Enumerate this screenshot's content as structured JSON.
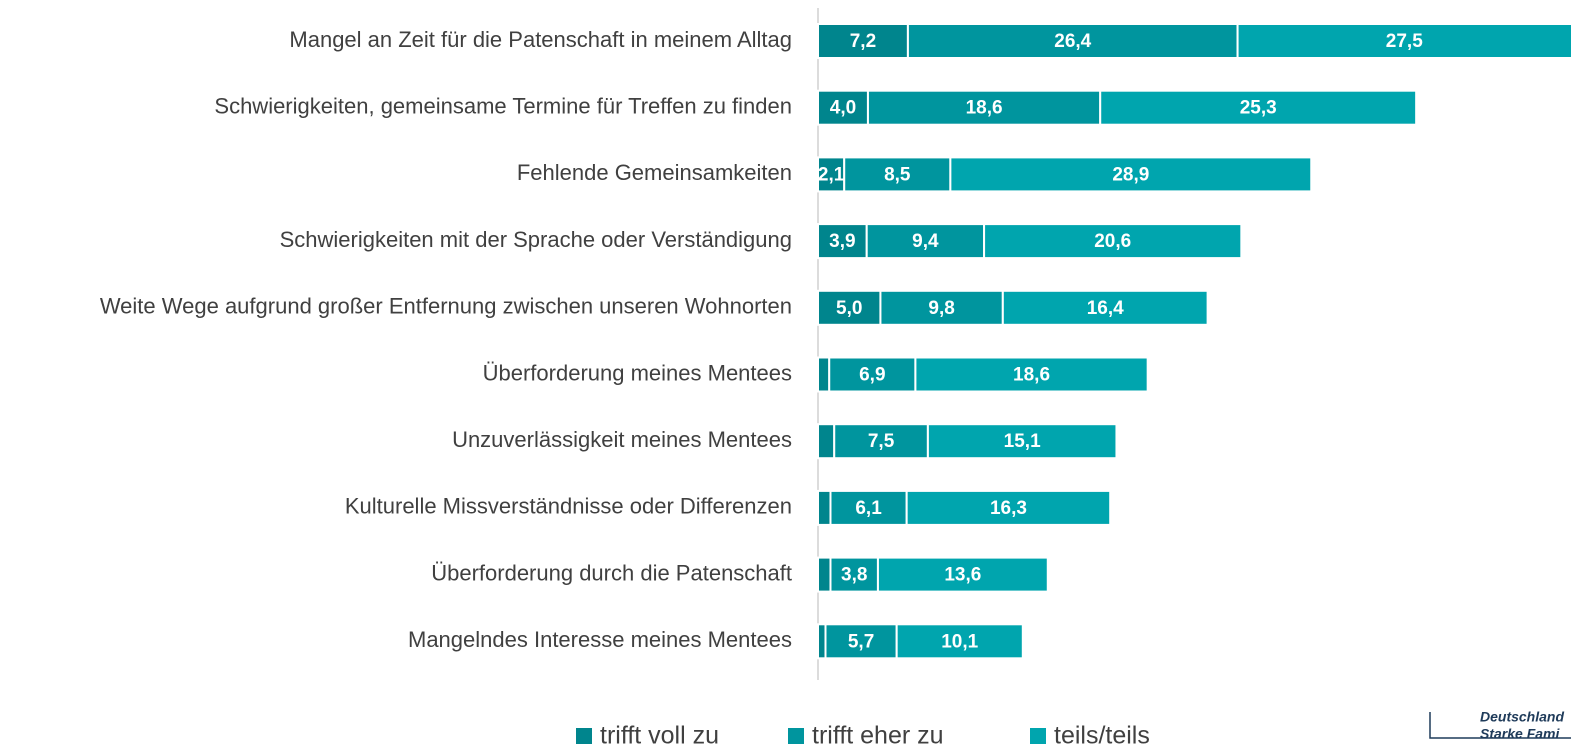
{
  "chart_data": {
    "type": "stacked-hbar",
    "categories": [
      "Mangel an Zeit für die Patenschaft in meinem Alltag",
      "Schwierigkeiten, gemeinsame Termine für Treffen zu finden",
      "Fehlende Gemeinsamkeiten",
      "Schwierigkeiten mit der Sprache oder Verständigung",
      "Weite Wege aufgrund großer Entfernung zwischen unseren Wohnorten",
      "Überforderung meines Mentees",
      "Unzuverlässigkeit meines Mentees",
      "Kulturelle Missverständnisse oder Differenzen",
      "Überforderung durch die Patenschaft",
      "Mangelndes Interesse meines Mentees"
    ],
    "series": [
      {
        "name": "trifft voll zu",
        "color": "#00858d",
        "values": [
          7.2,
          4.0,
          2.1,
          3.9,
          5.0,
          0.9,
          1.3,
          1.0,
          1.0,
          0.6
        ],
        "value_labels": [
          "7,2",
          "4,0",
          "2,1",
          "3,9",
          "5,0",
          null,
          null,
          null,
          null,
          null
        ]
      },
      {
        "name": "trifft eher zu",
        "color": "#00959e",
        "values": [
          26.4,
          18.6,
          8.5,
          9.4,
          9.8,
          6.9,
          7.5,
          6.1,
          3.8,
          5.7
        ],
        "value_labels": [
          "26,4",
          "18,6",
          "8,5",
          "9,4",
          "9,8",
          "6,9",
          "7,5",
          "6,1",
          "3,8",
          "5,7"
        ]
      },
      {
        "name": "teils/teils",
        "color": "#00a5ae",
        "values": [
          27.5,
          25.3,
          28.9,
          20.6,
          16.4,
          18.6,
          15.1,
          16.3,
          13.6,
          10.1
        ],
        "value_labels": [
          "27,5",
          "25,3",
          "28,9",
          "20,6",
          "16,4",
          "18,6",
          "15,1",
          "16,3",
          "13,6",
          "10,1"
        ]
      }
    ],
    "xlim": [
      0,
      60.3
    ]
  },
  "logo": {
    "line1": "Deutschland",
    "line2": "Starke Fami"
  }
}
